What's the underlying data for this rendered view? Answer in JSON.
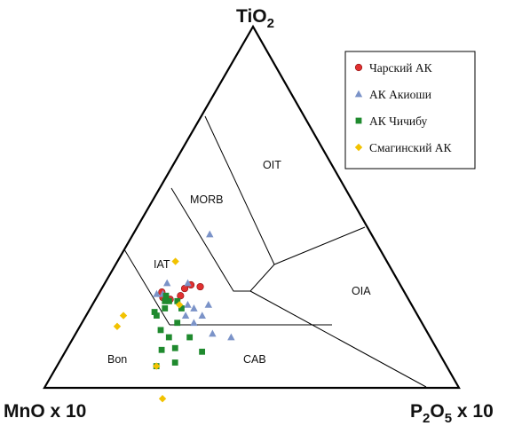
{
  "chart_data": {
    "type": "ternary",
    "axes": {
      "top": "TiO",
      "top_sub": "2",
      "left": "MnO x 10",
      "right_pre": "P",
      "right_sub1": "2",
      "right_mid": "O",
      "right_sub2": "5",
      "right_post": " x 10"
    },
    "fields": {
      "oit": "OIT",
      "morb": "MORB",
      "iat": "IAT",
      "oia": "OIA",
      "bon": "Bon",
      "cab": "CAB"
    },
    "series": [
      {
        "name": "Чарский АК",
        "marker": "circle",
        "color": "#e03030",
        "points": [
          [
            0.16,
            0.59
          ],
          [
            0.18,
            0.575
          ],
          [
            0.15,
            0.585
          ],
          [
            0.2,
            0.545
          ],
          [
            0.2,
            0.525
          ],
          [
            0.235,
            0.485
          ],
          [
            0.21,
            0.505
          ]
        ]
      },
      {
        "name": "АК Акиоши",
        "marker": "triangle",
        "color": "#7b93c8",
        "points": [
          [
            0.185,
            0.39
          ],
          [
            0.2,
            0.51
          ],
          [
            0.155,
            0.585
          ],
          [
            0.15,
            0.56
          ],
          [
            0.14,
            0.6
          ],
          [
            0.23,
            0.54
          ],
          [
            0.25,
            0.53
          ],
          [
            0.28,
            0.52
          ],
          [
            0.33,
            0.52
          ],
          [
            0.28,
            0.49
          ],
          [
            0.38,
            0.48
          ],
          [
            0.27,
            0.55
          ],
          [
            0.24,
            0.56
          ]
        ]
      },
      {
        "name": "АК Чичибу",
        "marker": "square",
        "color": "#1f8a2e",
        "points": [
          [
            0.18,
            0.58
          ],
          [
            0.165,
            0.58
          ],
          [
            0.17,
            0.59
          ],
          [
            0.18,
            0.6
          ],
          [
            0.16,
            0.63
          ],
          [
            0.17,
            0.63
          ],
          [
            0.2,
            0.56
          ],
          [
            0.22,
            0.56
          ],
          [
            0.23,
            0.59
          ],
          [
            0.2,
            0.64
          ],
          [
            0.23,
            0.63
          ],
          [
            0.23,
            0.665
          ],
          [
            0.24,
            0.7
          ],
          [
            0.28,
            0.65
          ],
          [
            0.26,
            0.63
          ],
          [
            0.28,
            0.58
          ],
          [
            0.33,
            0.57
          ]
        ]
      },
      {
        "name": "Смагинский АК",
        "marker": "diamond",
        "color": "#f2c200",
        "points": [
          [
            0.21,
            0.56
          ],
          [
            0.24,
            0.7
          ],
          [
            0.3,
            0.73
          ],
          [
            0.14,
            0.51
          ],
          [
            0.09,
            0.71
          ],
          [
            0.09,
            0.74
          ]
        ]
      }
    ]
  }
}
